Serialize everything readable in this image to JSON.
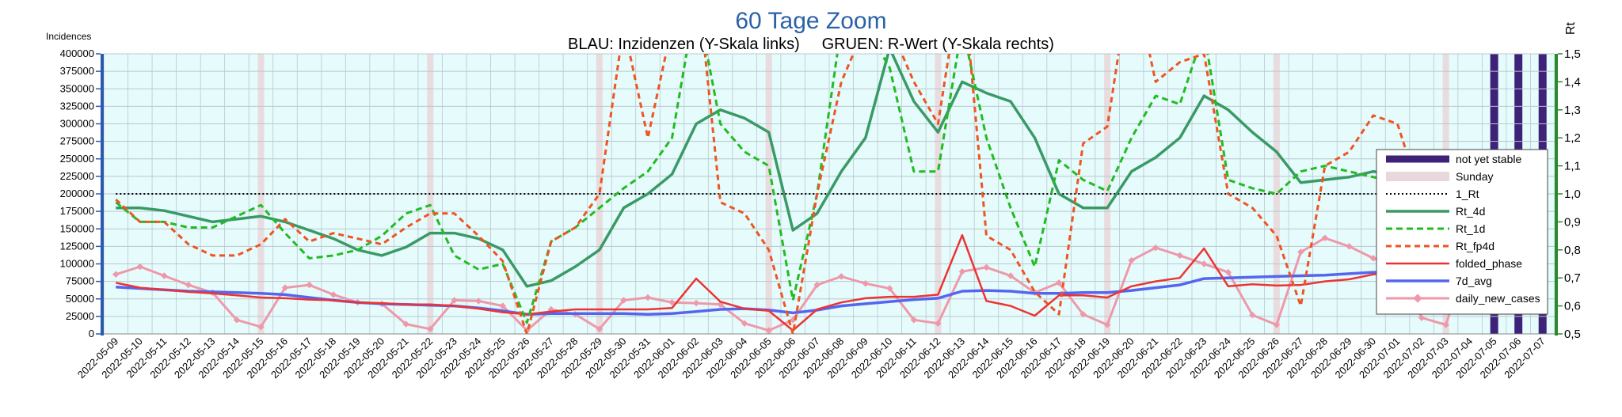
{
  "chart_data": {
    "type": "line",
    "title": "60 Tage Zoom",
    "subtitle": "BLAU: Inzidenzen (Y-Skala links)     GRUEN: R-Wert (Y-Skala rechts)",
    "ylabel_left": "Incidences",
    "ylabel_right": "Rt",
    "ylim_left": [
      0,
      400000
    ],
    "ylim_right": [
      0.5,
      1.5
    ],
    "yticks_left": [
      "0",
      "25000",
      "50000",
      "75000",
      "100000",
      "125000",
      "150000",
      "175000",
      "200000",
      "225000",
      "250000",
      "275000",
      "300000",
      "325000",
      "350000",
      "375000",
      "400000"
    ],
    "yticks_right": [
      "0,5",
      "0,6",
      "0,7",
      "0,8",
      "0,9",
      "1,0",
      "1,1",
      "1,2",
      "1,3",
      "1,4",
      "1,5"
    ],
    "categories": [
      "2022-05-09",
      "2022-05-10",
      "2022-05-11",
      "2022-05-12",
      "2022-05-13",
      "2022-05-14",
      "2022-05-15",
      "2022-05-16",
      "2022-05-17",
      "2022-05-18",
      "2022-05-19",
      "2022-05-20",
      "2022-05-21",
      "2022-05-22",
      "2022-05-23",
      "2022-05-24",
      "2022-05-25",
      "2022-05-26",
      "2022-05-27",
      "2022-05-28",
      "2022-05-29",
      "2022-05-30",
      "2022-05-31",
      "2022-06-01",
      "2022-06-02",
      "2022-06-03",
      "2022-06-04",
      "2022-06-05",
      "2022-06-06",
      "2022-06-07",
      "2022-06-08",
      "2022-06-09",
      "2022-06-10",
      "2022-06-11",
      "2022-06-12",
      "2022-06-13",
      "2022-06-14",
      "2022-06-15",
      "2022-06-16",
      "2022-06-17",
      "2022-06-18",
      "2022-06-19",
      "2022-06-20",
      "2022-06-21",
      "2022-06-22",
      "2022-06-23",
      "2022-06-24",
      "2022-06-25",
      "2022-06-26",
      "2022-06-27",
      "2022-06-28",
      "2022-06-29",
      "2022-06-30",
      "2022-07-01",
      "2022-07-02",
      "2022-07-03",
      "2022-07-04",
      "2022-07-05",
      "2022-07-06",
      "2022-07-07"
    ],
    "sundays": [
      "2022-05-15",
      "2022-05-22",
      "2022-05-29",
      "2022-06-05",
      "2022-06-12",
      "2022-06-19",
      "2022-06-26",
      "2022-07-03"
    ],
    "not_yet_stable": [
      "2022-07-05",
      "2022-07-06",
      "2022-07-07"
    ],
    "legend_position": "right",
    "grid": true,
    "series": [
      {
        "name": "not yet stable",
        "type": "band",
        "color": "#3d2278"
      },
      {
        "name": "Sunday",
        "type": "band",
        "color": "#e8d8dc"
      },
      {
        "name": "1_Rt",
        "axis": "right",
        "color": "#000000",
        "dash": "2,3",
        "values": [
          1,
          1,
          1,
          1,
          1,
          1,
          1,
          1,
          1,
          1,
          1,
          1,
          1,
          1,
          1,
          1,
          1,
          1,
          1,
          1,
          1,
          1,
          1,
          1,
          1,
          1,
          1,
          1,
          1,
          1,
          1,
          1,
          1,
          1,
          1,
          1,
          1,
          1,
          1,
          1,
          1,
          1,
          1,
          1,
          1,
          1,
          1,
          1,
          1,
          1,
          1,
          1,
          1,
          1,
          1,
          1,
          1,
          1,
          1,
          1
        ]
      },
      {
        "name": "Rt_4d",
        "axis": "right",
        "color": "#3a9a66",
        "width": 3.5,
        "values": [
          0.95,
          0.95,
          0.94,
          0.92,
          0.9,
          0.91,
          0.92,
          0.9,
          0.87,
          0.84,
          0.8,
          0.78,
          0.81,
          0.86,
          0.86,
          0.84,
          0.8,
          0.67,
          0.69,
          0.74,
          0.8,
          0.95,
          1.0,
          1.07,
          1.25,
          1.3,
          1.27,
          1.22,
          0.87,
          0.93,
          1.08,
          1.2,
          1.52,
          1.33,
          1.22,
          1.4,
          1.36,
          1.33,
          1.2,
          1.0,
          0.95,
          0.95,
          1.08,
          1.13,
          1.2,
          1.35,
          1.3,
          1.22,
          1.15,
          1.04,
          1.05,
          1.06,
          1.08,
          1.07,
          1.05,
          1.03,
          1.02,
          0.99,
          0.99,
          0.85
        ]
      },
      {
        "name": "Rt_1d",
        "axis": "right",
        "color": "#22bb22",
        "dash": "8,5",
        "width": 3,
        "values": [
          0.97,
          0.9,
          0.9,
          0.88,
          0.88,
          0.92,
          0.96,
          0.86,
          0.77,
          0.78,
          0.8,
          0.85,
          0.93,
          0.96,
          0.78,
          0.73,
          0.75,
          0.54,
          0.83,
          0.88,
          0.95,
          1.02,
          1.08,
          1.2,
          1.7,
          1.25,
          1.15,
          1.1,
          0.62,
          1.0,
          1.6,
          1.6,
          1.45,
          1.08,
          1.08,
          1.6,
          1.2,
          0.95,
          0.74,
          1.12,
          1.05,
          1.01,
          1.2,
          1.35,
          1.32,
          1.58,
          1.05,
          1.02,
          1.0,
          1.08,
          1.1,
          1.08,
          1.06,
          1.04,
          0.97,
          0.98,
          1.01,
          0.97,
          0.96,
          0.82
        ]
      },
      {
        "name": "Rt_fp4d",
        "axis": "right",
        "color": "#ee5522",
        "dash": "7,5",
        "width": 3,
        "values": [
          0.98,
          0.9,
          0.9,
          0.82,
          0.78,
          0.78,
          0.82,
          0.91,
          0.83,
          0.86,
          0.84,
          0.82,
          0.88,
          0.93,
          0.93,
          0.85,
          0.76,
          0.5,
          0.83,
          0.88,
          1.0,
          1.6,
          1.2,
          1.6,
          1.8,
          0.97,
          0.93,
          0.8,
          0.5,
          1.0,
          1.4,
          1.6,
          1.6,
          1.4,
          1.25,
          1.8,
          0.85,
          0.8,
          0.65,
          0.57,
          1.18,
          1.24,
          1.8,
          1.4,
          1.47,
          1.5,
          1.0,
          0.95,
          0.85,
          0.6,
          1.1,
          1.15,
          1.28,
          1.25,
          0.98,
          0.97,
          1.0,
          0.95,
          1.15,
          0.88
        ]
      },
      {
        "name": "folded_phase",
        "axis": "left",
        "color": "#ee3333",
        "width": 2.5,
        "values": [
          73000,
          66000,
          63000,
          60000,
          58000,
          55000,
          52000,
          51000,
          49000,
          48000,
          45000,
          44000,
          42000,
          42000,
          40000,
          36000,
          31000,
          28000,
          32000,
          35000,
          35000,
          35000,
          35000,
          37000,
          79000,
          46000,
          36000,
          33000,
          5000,
          35000,
          45000,
          51000,
          53000,
          53000,
          56000,
          141000,
          47000,
          40000,
          26000,
          55000,
          55000,
          52000,
          68000,
          75000,
          80000,
          122000,
          68000,
          71000,
          69000,
          70000,
          75000,
          78000,
          85000,
          88000,
          72000,
          75000,
          85000,
          85000,
          84000,
          68000
        ]
      },
      {
        "name": "7d_avg",
        "axis": "left",
        "color": "#5566ee",
        "width": 3.5,
        "values": [
          67000,
          65000,
          63000,
          61000,
          60000,
          59000,
          58000,
          56000,
          52000,
          48000,
          45000,
          43000,
          42000,
          41000,
          40000,
          37000,
          33000,
          28000,
          29000,
          29000,
          29000,
          29000,
          28000,
          29000,
          32000,
          35000,
          36000,
          34000,
          30000,
          34000,
          40000,
          43000,
          46000,
          49000,
          51000,
          61000,
          62000,
          61000,
          58000,
          58000,
          59000,
          59000,
          62000,
          66000,
          70000,
          79000,
          80000,
          81000,
          82000,
          83000,
          84000,
          86000,
          88000,
          88000,
          88000,
          87000,
          87000,
          87000,
          86000,
          80000
        ]
      },
      {
        "name": "daily_new_cases",
        "axis": "left",
        "color": "#ee99aa",
        "width": 3,
        "values": [
          85000,
          96000,
          83000,
          70000,
          59000,
          20000,
          10000,
          66000,
          70000,
          56000,
          45000,
          43000,
          14000,
          7000,
          48000,
          47000,
          40000,
          5000,
          35000,
          28000,
          7000,
          48000,
          52000,
          45000,
          44000,
          42000,
          15000,
          5000,
          20000,
          70000,
          82000,
          72000,
          65000,
          20000,
          15000,
          89000,
          95000,
          83000,
          59000,
          73000,
          28000,
          13000,
          105000,
          123000,
          112000,
          100000,
          88000,
          27000,
          13000,
          117000,
          137000,
          125000,
          108000,
          92000,
          23000,
          13000,
          120000,
          133000,
          120000,
          75000
        ]
      }
    ]
  }
}
